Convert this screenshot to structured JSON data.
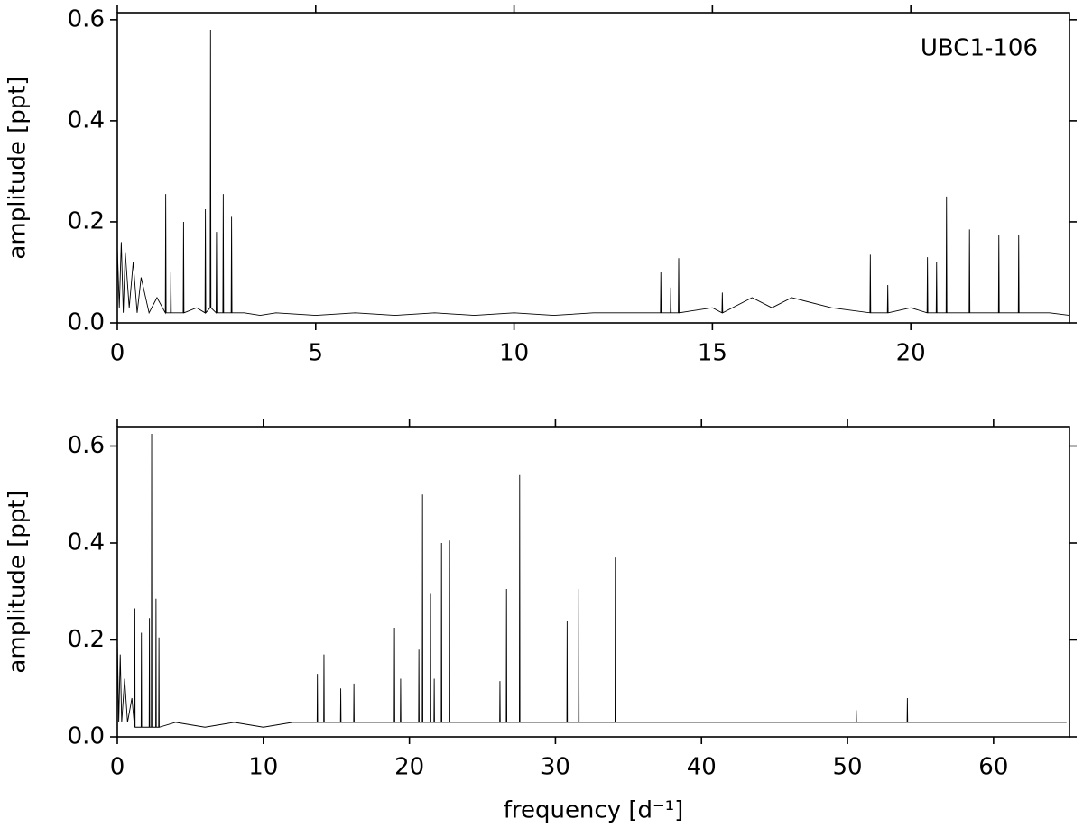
{
  "chart_data": [
    {
      "type": "line",
      "annotation": "UBC1-106",
      "ylabel": "amplitude [ppt]",
      "color": "#000000",
      "xlim": [
        0,
        24
      ],
      "ylim": [
        0,
        0.614
      ],
      "xticks": [
        0,
        5,
        10,
        15,
        20
      ],
      "yticks": [
        {
          "value": 0,
          "label": "0.0"
        },
        {
          "value": 0.2,
          "label": "0.2"
        },
        {
          "value": 0.4,
          "label": "0.4"
        },
        {
          "value": 0.6,
          "label": "0.6"
        }
      ],
      "x": [
        0,
        0.05,
        0.1,
        0.15,
        0.2,
        0.3,
        0.4,
        0.5,
        0.6,
        0.8,
        1.0,
        1.21,
        1.22,
        1.23,
        1.34,
        1.35,
        1.36,
        1.66,
        1.67,
        1.68,
        2.0,
        2.21,
        2.22,
        2.23,
        2.34,
        2.35,
        2.36,
        2.49,
        2.5,
        2.51,
        2.66,
        2.67,
        2.68,
        2.87,
        2.88,
        2.89,
        3.2,
        3.6,
        4,
        5,
        6,
        7,
        8,
        9,
        10,
        11,
        12,
        13,
        13.69,
        13.7,
        13.71,
        13.94,
        13.95,
        13.96,
        14.14,
        14.15,
        14.16,
        15,
        15.24,
        15.25,
        15.26,
        16,
        16.5,
        17,
        18,
        18.97,
        18.98,
        18.99,
        19.41,
        19.42,
        19.43,
        20,
        20.41,
        20.42,
        20.43,
        20.64,
        20.65,
        20.66,
        20.89,
        20.9,
        20.91,
        21.47,
        21.48,
        21.49,
        22.21,
        22.22,
        22.23,
        22.71,
        22.72,
        22.73,
        23.5,
        24
      ],
      "values": [
        0.15,
        0.03,
        0.16,
        0.02,
        0.14,
        0.03,
        0.12,
        0.02,
        0.09,
        0.02,
        0.05,
        0.02,
        0.255,
        0.02,
        0.02,
        0.1,
        0.02,
        0.02,
        0.2,
        0.02,
        0.03,
        0.02,
        0.225,
        0.02,
        0.03,
        0.58,
        0.03,
        0.02,
        0.18,
        0.02,
        0.02,
        0.255,
        0.02,
        0.02,
        0.21,
        0.02,
        0.02,
        0.015,
        0.02,
        0.015,
        0.02,
        0.015,
        0.02,
        0.015,
        0.02,
        0.015,
        0.02,
        0.02,
        0.02,
        0.1,
        0.02,
        0.02,
        0.07,
        0.02,
        0.02,
        0.128,
        0.02,
        0.03,
        0.02,
        0.06,
        0.02,
        0.05,
        0.03,
        0.05,
        0.03,
        0.02,
        0.135,
        0.02,
        0.02,
        0.075,
        0.02,
        0.03,
        0.02,
        0.13,
        0.02,
        0.02,
        0.12,
        0.02,
        0.02,
        0.25,
        0.02,
        0.02,
        0.185,
        0.02,
        0.02,
        0.175,
        0.02,
        0.02,
        0.175,
        0.02,
        0.02,
        0.015
      ]
    },
    {
      "type": "line",
      "ylabel": "amplitude [ppt]",
      "xlabel": "frequency [d⁻¹]",
      "color": "#000000",
      "xlim": [
        0,
        65.2
      ],
      "ylim": [
        0,
        0.64
      ],
      "xticks": [
        0,
        10,
        20,
        30,
        40,
        50,
        60
      ],
      "yticks": [
        {
          "value": 0,
          "label": "0.0"
        },
        {
          "value": 0.2,
          "label": "0.2"
        },
        {
          "value": 0.4,
          "label": "0.4"
        },
        {
          "value": 0.6,
          "label": "0.6"
        }
      ],
      "x": [
        0,
        0.1,
        0.2,
        0.3,
        0.5,
        0.7,
        1.0,
        1.18,
        1.2,
        1.22,
        1.63,
        1.65,
        1.67,
        2.18,
        2.2,
        2.22,
        2.33,
        2.35,
        2.37,
        2.63,
        2.65,
        2.67,
        2.83,
        2.85,
        2.87,
        4,
        6,
        8,
        10,
        12,
        13.68,
        13.7,
        13.72,
        14.13,
        14.15,
        14.17,
        15.28,
        15.3,
        15.32,
        16.18,
        16.2,
        16.22,
        18.96,
        18.98,
        19.0,
        19.38,
        19.4,
        19.42,
        20.63,
        20.65,
        20.67,
        20.88,
        20.9,
        20.92,
        21.43,
        21.45,
        21.47,
        21.68,
        21.7,
        21.72,
        22.18,
        22.2,
        22.22,
        22.73,
        22.75,
        22.77,
        24,
        26.18,
        26.2,
        26.22,
        26.63,
        26.65,
        26.67,
        27.53,
        27.55,
        27.57,
        29,
        30.78,
        30.8,
        30.82,
        31.58,
        31.6,
        31.62,
        34.08,
        34.1,
        34.12,
        38,
        42,
        46,
        50.58,
        50.6,
        50.62,
        54.08,
        54.1,
        54.12,
        58,
        62,
        65
      ],
      "values": [
        0.2,
        0.03,
        0.17,
        0.03,
        0.12,
        0.03,
        0.08,
        0.02,
        0.265,
        0.02,
        0.02,
        0.215,
        0.02,
        0.02,
        0.245,
        0.02,
        0.02,
        0.625,
        0.02,
        0.02,
        0.285,
        0.02,
        0.02,
        0.205,
        0.02,
        0.03,
        0.02,
        0.03,
        0.02,
        0.03,
        0.03,
        0.13,
        0.03,
        0.03,
        0.17,
        0.03,
        0.03,
        0.1,
        0.03,
        0.03,
        0.11,
        0.03,
        0.03,
        0.225,
        0.03,
        0.03,
        0.12,
        0.03,
        0.03,
        0.18,
        0.03,
        0.03,
        0.5,
        0.03,
        0.03,
        0.295,
        0.03,
        0.03,
        0.12,
        0.03,
        0.03,
        0.4,
        0.03,
        0.03,
        0.405,
        0.03,
        0.03,
        0.03,
        0.115,
        0.03,
        0.03,
        0.305,
        0.03,
        0.03,
        0.54,
        0.03,
        0.03,
        0.03,
        0.24,
        0.03,
        0.03,
        0.305,
        0.03,
        0.03,
        0.37,
        0.03,
        0.03,
        0.03,
        0.03,
        0.03,
        0.055,
        0.03,
        0.03,
        0.08,
        0.03,
        0.03,
        0.03,
        0.03
      ]
    }
  ]
}
